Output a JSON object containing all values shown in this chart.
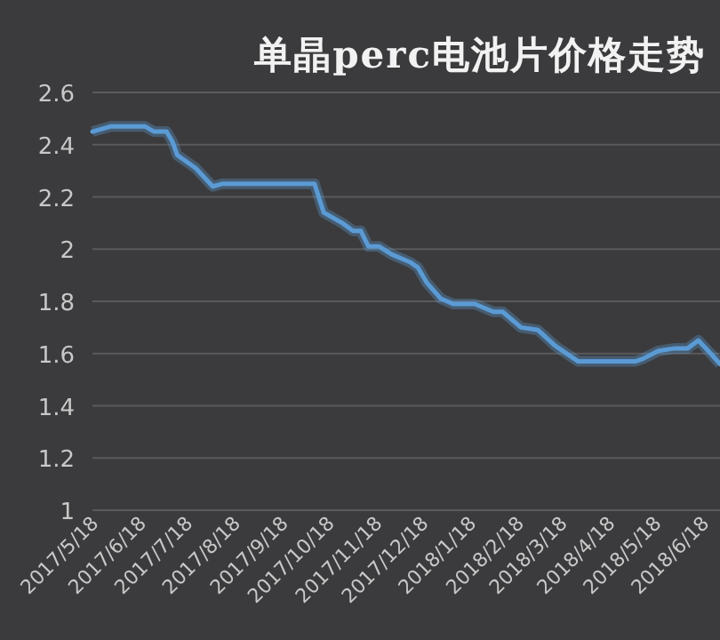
{
  "chart_data": {
    "type": "line",
    "title": "单晶perc电池片价格走势",
    "x": [
      "2017-05-18",
      "2017-05-30",
      "2017-06-21",
      "2017-06-27",
      "2017-07-05",
      "2017-07-09",
      "2017-07-12",
      "2017-07-24",
      "2017-08-04",
      "2017-08-10",
      "2017-10-09",
      "2017-10-15",
      "2017-10-27",
      "2017-11-03",
      "2017-11-08",
      "2017-11-13",
      "2017-11-20",
      "2017-11-28",
      "2017-12-10",
      "2017-12-15",
      "2017-12-21",
      "2017-12-30",
      "2018-01-07",
      "2018-01-21",
      "2018-02-02",
      "2018-02-08",
      "2018-02-20",
      "2018-03-03",
      "2018-03-14",
      "2018-03-29",
      "2018-05-05",
      "2018-05-10",
      "2018-05-20",
      "2018-05-31",
      "2018-06-08",
      "2018-06-15",
      "2018-06-23",
      "2018-06-29"
    ],
    "series": [
      {
        "color": "#5b9bd5",
        "values": [
          2.45,
          2.47,
          2.47,
          2.45,
          2.45,
          2.41,
          2.36,
          2.31,
          2.24,
          2.25,
          2.25,
          2.14,
          2.1,
          2.07,
          2.07,
          2.01,
          2.01,
          1.98,
          1.95,
          1.93,
          1.87,
          1.81,
          1.79,
          1.79,
          1.76,
          1.76,
          1.7,
          1.69,
          1.63,
          1.57,
          1.57,
          1.58,
          1.61,
          1.62,
          1.62,
          1.65,
          1.6,
          1.56
        ]
      }
    ],
    "xlim": [
      "2017-05-18",
      "2018-06-29"
    ],
    "xticks": [
      {
        "value": "2017-05-18",
        "label": "2017/5/18"
      },
      {
        "value": "2017-06-18",
        "label": "2017/6/18"
      },
      {
        "value": "2017-07-18",
        "label": "2017/7/18"
      },
      {
        "value": "2017-08-18",
        "label": "2017/8/18"
      },
      {
        "value": "2017-09-18",
        "label": "2017/9/18"
      },
      {
        "value": "2017-10-18",
        "label": "2017/10/18"
      },
      {
        "value": "2017-11-18",
        "label": "2017/11/18"
      },
      {
        "value": "2017-12-18",
        "label": "2017/12/18"
      },
      {
        "value": "2018-01-18",
        "label": "2018/1/18"
      },
      {
        "value": "2018-02-18",
        "label": "2018/2/18"
      },
      {
        "value": "2018-03-18",
        "label": "2018/3/18"
      },
      {
        "value": "2018-04-18",
        "label": "2018/4/18"
      },
      {
        "value": "2018-05-18",
        "label": "2018/5/18"
      },
      {
        "value": "2018-06-18",
        "label": "2018/6/18"
      }
    ],
    "ylim": [
      1,
      2.6
    ],
    "yticks": [
      {
        "value": 1,
        "label": "1"
      },
      {
        "value": 1.2,
        "label": "1.2"
      },
      {
        "value": 1.4,
        "label": "1.4"
      },
      {
        "value": 1.6,
        "label": "1.6"
      },
      {
        "value": 1.8,
        "label": "1.8"
      },
      {
        "value": 2,
        "label": "2"
      },
      {
        "value": 2.2,
        "label": "2.2"
      },
      {
        "value": 2.4,
        "label": "2.4"
      },
      {
        "value": 2.6,
        "label": "2.6"
      }
    ],
    "grid": "y",
    "marker": "none",
    "line_style": "solid"
  }
}
